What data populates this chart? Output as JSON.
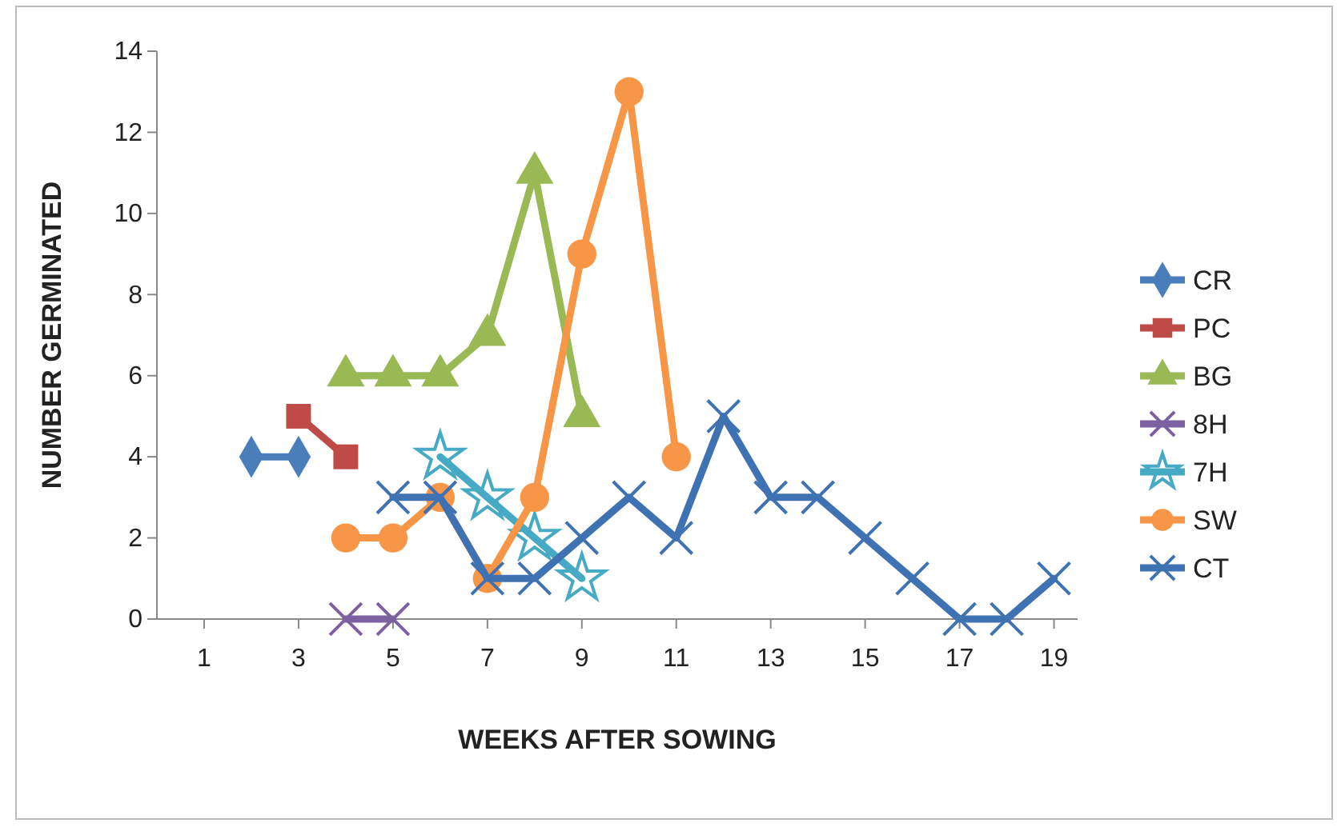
{
  "chart_data": {
    "type": "line",
    "xlabel": "WEEKS AFTER SOWING",
    "ylabel": "NUMBER GERMINATED",
    "legend": "right",
    "grid": false,
    "xlim": [
      0,
      19.5
    ],
    "xticks": [
      1,
      3,
      5,
      7,
      9,
      11,
      13,
      15,
      17,
      19
    ],
    "ylim": [
      0,
      14
    ],
    "yticks": [
      0,
      2,
      4,
      6,
      8,
      10,
      12,
      14
    ],
    "series": [
      {
        "name": "CR",
        "color": "#4a7ebb",
        "marker": "diamond",
        "x": [
          2,
          3
        ],
        "values": [
          4,
          4
        ]
      },
      {
        "name": "PC",
        "color": "#be4b48",
        "marker": "square",
        "x": [
          3,
          4
        ],
        "values": [
          5,
          4
        ]
      },
      {
        "name": "BG",
        "color": "#98b954",
        "marker": "triangle",
        "x": [
          4,
          5,
          6,
          7,
          8,
          9
        ],
        "values": [
          6,
          6,
          6,
          7,
          11,
          5
        ]
      },
      {
        "name": "8H",
        "color": "#7d60a0",
        "marker": "cross",
        "x": [
          4,
          5
        ],
        "values": [
          0,
          0
        ]
      },
      {
        "name": "7H",
        "color": "#46aac5",
        "marker": "star",
        "x": [
          6,
          7,
          8,
          9
        ],
        "values": [
          4,
          3,
          2,
          1
        ]
      },
      {
        "name": "SW",
        "color": "#f79646",
        "marker": "circle",
        "x": [
          4,
          5,
          6,
          7,
          8,
          9,
          10,
          11
        ],
        "values": [
          2,
          2,
          3,
          1,
          3,
          9,
          13,
          4
        ]
      },
      {
        "name": "CT",
        "color": "#3f72b3",
        "marker": "cross",
        "x": [
          5,
          6,
          7,
          8,
          9,
          10,
          11,
          12,
          13,
          14,
          15,
          16,
          17,
          18,
          19
        ],
        "values": [
          3,
          3,
          1,
          1,
          2,
          3,
          2,
          5,
          3,
          3,
          2,
          1,
          0,
          0,
          1
        ]
      }
    ]
  }
}
